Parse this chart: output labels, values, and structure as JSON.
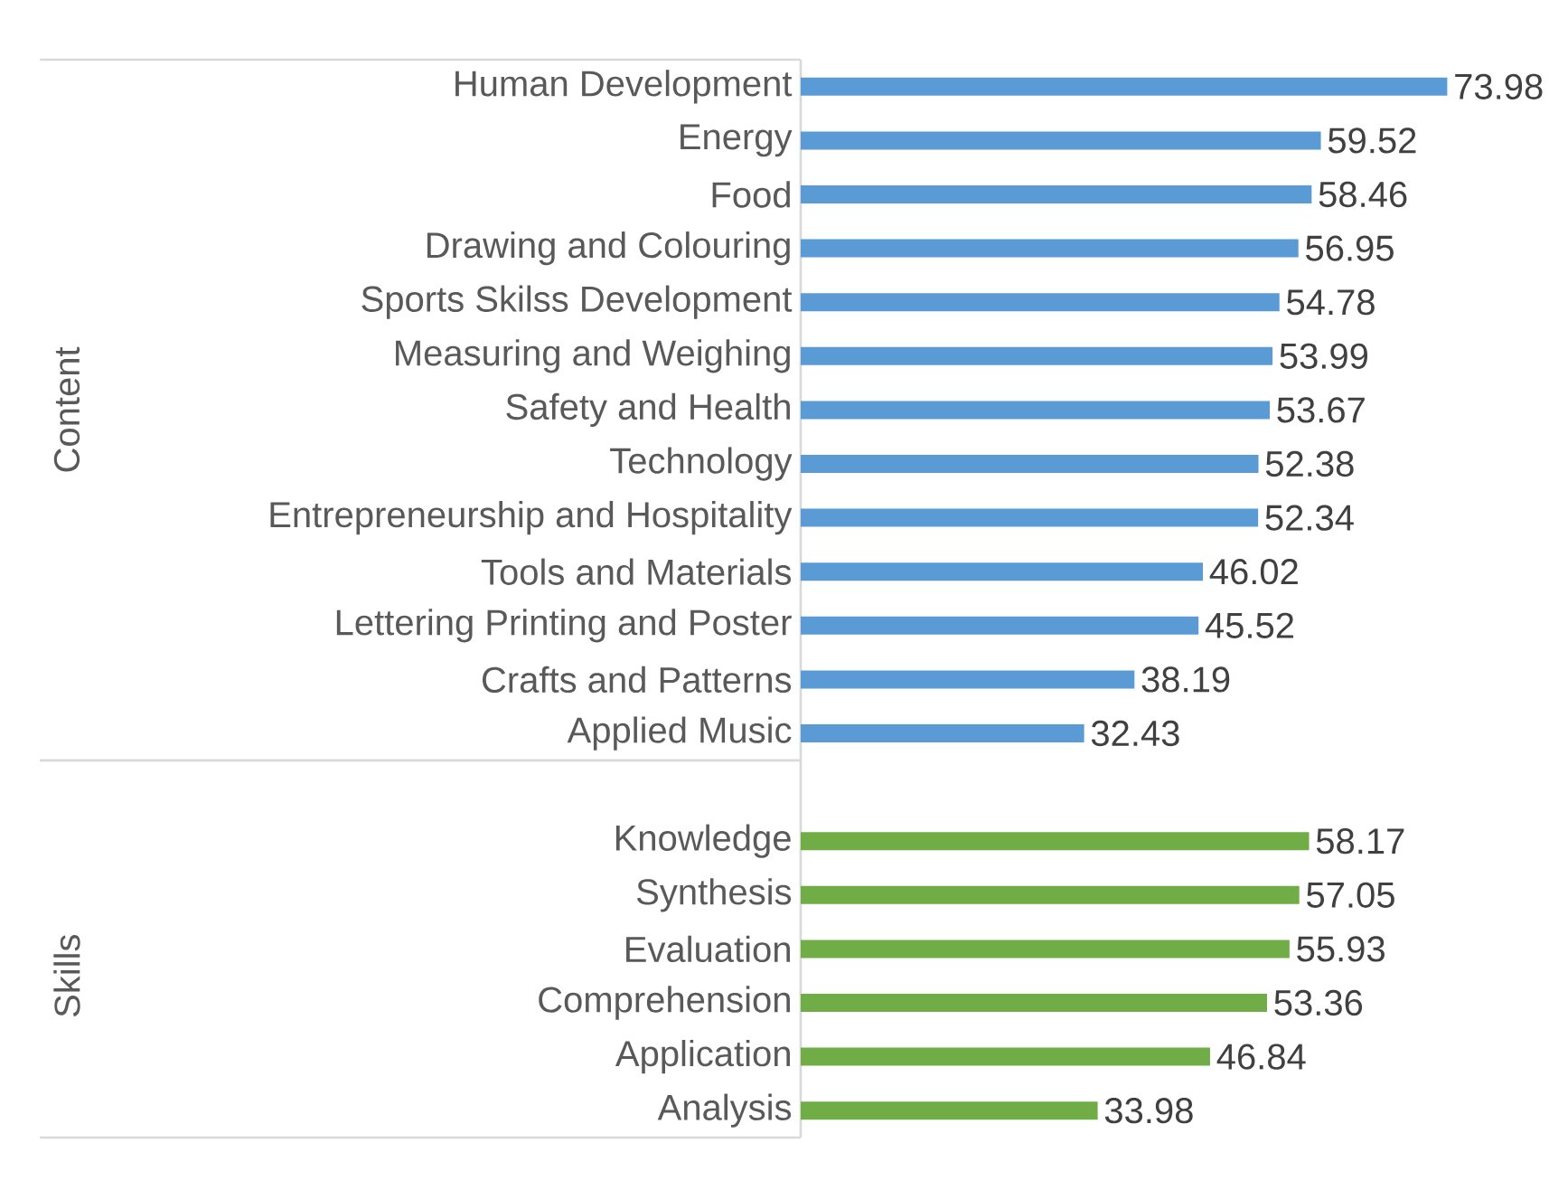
{
  "chart_data": {
    "type": "bar",
    "orientation": "horizontal",
    "categories": [
      "Human Development",
      "Energy",
      "Food",
      "Drawing and Colouring",
      "Sports Skilss Development",
      "Measuring and Weighing",
      "Safety and Health",
      "Technology",
      "Entrepreneurship and Hospitality",
      "Tools and Materials",
      "Lettering Printing and Poster",
      "Crafts and Patterns",
      "Applied Music",
      null,
      "Knowledge",
      "Synthesis",
      "Evaluation",
      "Comprehension",
      "Application",
      "Analysis"
    ],
    "values": [
      73.98,
      59.52,
      58.46,
      56.95,
      54.78,
      53.99,
      53.67,
      52.38,
      52.34,
      46.02,
      45.52,
      38.19,
      32.43,
      null,
      58.17,
      57.05,
      55.93,
      53.36,
      46.84,
      33.98
    ],
    "colors": [
      "#5b9bd5",
      "#5b9bd5",
      "#5b9bd5",
      "#5b9bd5",
      "#5b9bd5",
      "#5b9bd5",
      "#5b9bd5",
      "#5b9bd5",
      "#5b9bd5",
      "#5b9bd5",
      "#5b9bd5",
      "#5b9bd5",
      "#5b9bd5",
      null,
      "#70ad47",
      "#70ad47",
      "#70ad47",
      "#70ad47",
      "#70ad47",
      "#70ad47"
    ],
    "data_labels": true,
    "annotations": [
      "Content",
      "Skills"
    ]
  }
}
